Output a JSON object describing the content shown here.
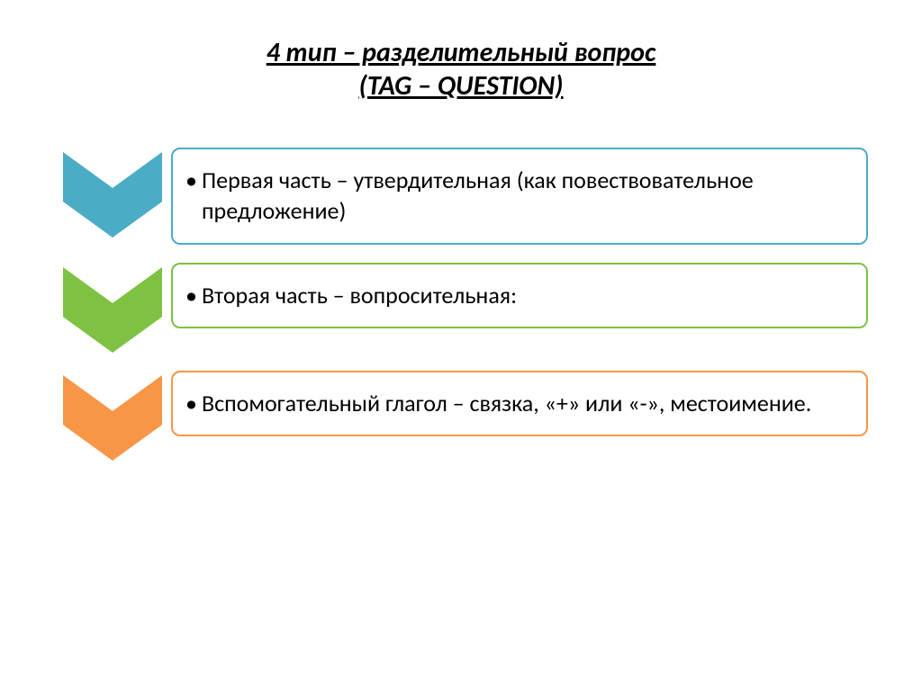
{
  "title": {
    "line1": "4 тип – разделительный вопрос",
    "line2": "(TAG – QUESTION)",
    "fontsize": 30,
    "color": "#000000"
  },
  "item_fontsize": 26,
  "items": [
    {
      "text": "Первая часть – утвердительная (как повествовательное предложение)",
      "color": "#4bacc6",
      "border_color": "#4bacc6"
    },
    {
      "text": "Вторая часть – вопросительная:",
      "color": "#7dc242",
      "border_color": "#7dc242"
    },
    {
      "text": "Вспомогательный глагол – связка, «+» или «-», местоимение.",
      "color": "#f79646",
      "border_color": "#f79646"
    }
  ],
  "chevron": {
    "width": 110,
    "height": 95
  },
  "background_color": "#ffffff"
}
